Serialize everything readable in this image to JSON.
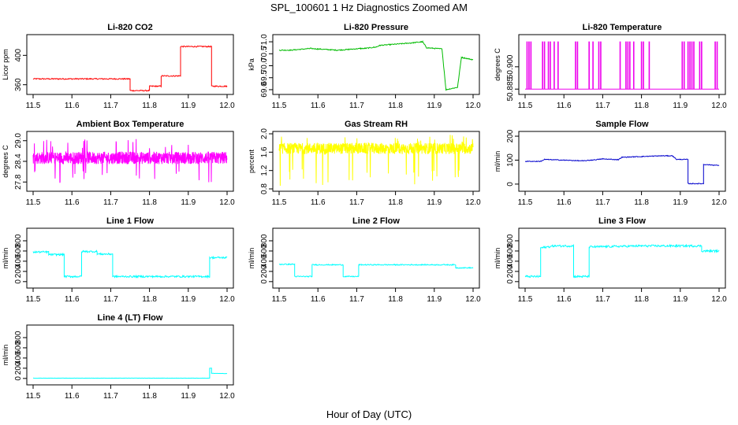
{
  "figure": {
    "title": "SPL_100601  1 Hz Diagnostics Zoomed AM",
    "xlabel": "Hour of Day (UTC)"
  },
  "chart_data": [
    {
      "id": "co2",
      "type": "line",
      "title": "Li-820 CO2",
      "ylabel": "Licor ppm",
      "color": "#ff0000",
      "xlim": [
        11.5,
        12.0
      ],
      "ylim": [
        350,
        425
      ],
      "yticks": [
        360,
        400
      ],
      "ytick_labels": [
        "360",
        "400"
      ],
      "xticks": [
        11.5,
        11.6,
        11.7,
        11.8,
        11.9,
        12.0
      ],
      "xtick_labels": [
        "11.5",
        "11.6",
        "11.7",
        "11.8",
        "11.9",
        "12.0"
      ],
      "x": [
        11.5,
        11.75,
        11.75,
        11.8,
        11.8,
        11.83,
        11.83,
        11.88,
        11.88,
        11.96,
        11.96,
        12.0
      ],
      "y": [
        368,
        368,
        352,
        352,
        358,
        358,
        372,
        372,
        412,
        412,
        358,
        358
      ],
      "noise": 0.8
    },
    {
      "id": "pressure",
      "type": "line",
      "title": "Li-820 Pressure",
      "ylabel": "kPa",
      "color": "#00bb00",
      "xlim": [
        11.5,
        12.0
      ],
      "ylim": [
        68.9,
        71.2
      ],
      "yticks": [
        69.0,
        69.5,
        70.0,
        70.5,
        71.0
      ],
      "ytick_labels": [
        "69.0",
        "69.5",
        "70.0",
        "70.5",
        "71.0"
      ],
      "xticks": [
        11.5,
        11.6,
        11.7,
        11.8,
        11.9,
        12.0
      ],
      "xtick_labels": [
        "11.5",
        "11.6",
        "11.7",
        "11.8",
        "11.9",
        "12.0"
      ],
      "x": [
        11.5,
        11.53,
        11.58,
        11.6,
        11.65,
        11.68,
        11.71,
        11.72,
        11.75,
        11.76,
        11.8,
        11.84,
        11.87,
        11.88,
        11.92,
        11.93,
        11.96,
        11.97,
        12.0
      ],
      "y": [
        70.65,
        70.65,
        70.72,
        70.7,
        70.65,
        70.68,
        70.72,
        70.72,
        70.78,
        70.85,
        70.9,
        70.95,
        71.0,
        70.75,
        70.7,
        69.0,
        69.1,
        70.35,
        70.25
      ],
      "noise": 0.02
    },
    {
      "id": "temp",
      "type": "spikes",
      "title": "Li-820 Temperature",
      "ylabel": "degrees C",
      "color": "#ee00ee",
      "xlim": [
        11.5,
        12.0
      ],
      "ylim": [
        50.883,
        50.92
      ],
      "yticks": [
        50.885,
        50.9
      ],
      "ytick_labels": [
        "50.885",
        "50.900"
      ],
      "xticks": [
        11.5,
        11.6,
        11.7,
        11.8,
        11.9,
        12.0
      ],
      "xtick_labels": [
        "11.5",
        "11.6",
        "11.7",
        "11.8",
        "11.9",
        "12.0"
      ],
      "baseline": 50.885,
      "peak": 50.917,
      "spikes": [
        11.505,
        11.51,
        11.515,
        11.545,
        11.55,
        11.56,
        11.565,
        11.575,
        11.585,
        11.63,
        11.635,
        11.665,
        11.675,
        11.69,
        11.695,
        11.745,
        11.76,
        11.765,
        11.77,
        11.78,
        11.8,
        11.805,
        11.82,
        11.905,
        11.91,
        11.92,
        11.925,
        11.93,
        11.935,
        11.95,
        11.955,
        11.99,
        11.995
      ]
    },
    {
      "id": "box",
      "type": "noise",
      "title": "Ambient Box Temperature",
      "ylabel": "degrees C",
      "color": "#ff00ff",
      "xlim": [
        11.5,
        12.0
      ],
      "ylim": [
        27.6,
        29.2
      ],
      "yticks": [
        27.8,
        28.4,
        29.0
      ],
      "ytick_labels": [
        "27.8",
        "28.4",
        "29.0"
      ],
      "xticks": [
        11.5,
        11.6,
        11.7,
        11.8,
        11.9,
        12.0
      ],
      "xtick_labels": [
        "11.5",
        "11.6",
        "11.7",
        "11.8",
        "11.9",
        "12.0"
      ],
      "center": 28.5,
      "spread": 0.18,
      "outlier_low": 27.75,
      "outlier_high": 29.05
    },
    {
      "id": "rh",
      "type": "noise",
      "title": "Gas Stream RH",
      "ylabel": "percent",
      "color": "#ffff00",
      "xlim": [
        11.5,
        12.0
      ],
      "ylim": [
        0.8,
        2.0
      ],
      "yticks": [
        0.8,
        1.2,
        1.6,
        2.0
      ],
      "ytick_labels": [
        "0.8",
        "1.2",
        "1.6",
        "2.0"
      ],
      "xticks": [
        11.5,
        11.6,
        11.7,
        11.8,
        11.9,
        12.0
      ],
      "xtick_labels": [
        "11.5",
        "11.6",
        "11.7",
        "11.8",
        "11.9",
        "12.0"
      ],
      "center": 1.68,
      "spread": 0.12,
      "outlier_low": 0.85,
      "outlier_high": 1.98
    },
    {
      "id": "sample",
      "type": "line",
      "title": "Sample Flow",
      "ylabel": "ml/min",
      "color": "#0000cc",
      "xlim": [
        11.5,
        12.0
      ],
      "ylim": [
        -20,
        210
      ],
      "yticks": [
        0,
        100,
        200
      ],
      "ytick_labels": [
        "0",
        "100",
        "200"
      ],
      "xticks": [
        11.5,
        11.6,
        11.7,
        11.8,
        11.9,
        12.0
      ],
      "xtick_labels": [
        "11.5",
        "11.6",
        "11.7",
        "11.8",
        "11.9",
        "12.0"
      ],
      "x": [
        11.5,
        11.54,
        11.55,
        11.6,
        11.65,
        11.67,
        11.7,
        11.74,
        11.75,
        11.8,
        11.85,
        11.88,
        11.89,
        11.92,
        11.92,
        11.96,
        11.96,
        12.0
      ],
      "y": [
        95,
        95,
        103,
        100,
        97,
        100,
        105,
        102,
        112,
        115,
        118,
        118,
        103,
        103,
        2,
        2,
        82,
        78
      ],
      "noise": 1.5
    },
    {
      "id": "line1",
      "type": "line",
      "title": "Line 1 Flow",
      "ylabel": "ml/min",
      "color": "#00ffff",
      "xlim": [
        11.5,
        12.0
      ],
      "ylim": [
        -80,
        1000
      ],
      "yticks": [
        0,
        200,
        400,
        600,
        800
      ],
      "ytick_labels": [
        "0",
        "200",
        "400",
        "600",
        "800"
      ],
      "xticks": [
        11.5,
        11.6,
        11.7,
        11.8,
        11.9,
        12.0
      ],
      "xtick_labels": [
        "11.5",
        "11.6",
        "11.7",
        "11.8",
        "11.9",
        "12.0"
      ],
      "x": [
        11.5,
        11.54,
        11.54,
        11.58,
        11.58,
        11.625,
        11.625,
        11.665,
        11.665,
        11.705,
        11.705,
        11.955,
        11.955,
        12.0
      ],
      "y": [
        580,
        580,
        530,
        530,
        100,
        100,
        590,
        590,
        540,
        540,
        100,
        100,
        470,
        470
      ],
      "noise": 18
    },
    {
      "id": "line2",
      "type": "line",
      "title": "Line 2 Flow",
      "ylabel": "ml/min",
      "color": "#00ffff",
      "xlim": [
        11.5,
        12.0
      ],
      "ylim": [
        -80,
        1000
      ],
      "yticks": [
        0,
        200,
        400,
        600,
        800
      ],
      "ytick_labels": [
        "0",
        "200",
        "400",
        "600",
        "800"
      ],
      "xticks": [
        11.5,
        11.6,
        11.7,
        11.8,
        11.9,
        12.0
      ],
      "xtick_labels": [
        "11.5",
        "11.6",
        "11.7",
        "11.8",
        "11.9",
        "12.0"
      ],
      "x": [
        11.5,
        11.54,
        11.54,
        11.585,
        11.585,
        11.665,
        11.665,
        11.705,
        11.705,
        11.955,
        11.955,
        12.0
      ],
      "y": [
        340,
        340,
        100,
        100,
        330,
        330,
        100,
        100,
        330,
        330,
        270,
        270
      ],
      "noise": 10
    },
    {
      "id": "line3",
      "type": "line",
      "title": "Line 3 Flow",
      "ylabel": "ml/min",
      "color": "#00ffff",
      "xlim": [
        11.5,
        12.0
      ],
      "ylim": [
        -80,
        1000
      ],
      "yticks": [
        0,
        200,
        400,
        600,
        800
      ],
      "ytick_labels": [
        "0",
        "200",
        "400",
        "600",
        "800"
      ],
      "xticks": [
        11.5,
        11.6,
        11.7,
        11.8,
        11.9,
        12.0
      ],
      "xtick_labels": [
        "11.5",
        "11.6",
        "11.7",
        "11.8",
        "11.9",
        "12.0"
      ],
      "x": [
        11.5,
        11.54,
        11.54,
        11.575,
        11.625,
        11.625,
        11.665,
        11.665,
        11.8,
        11.955,
        11.955,
        12.0
      ],
      "y": [
        100,
        100,
        660,
        700,
        700,
        100,
        100,
        680,
        700,
        700,
        600,
        600
      ],
      "noise": 20
    },
    {
      "id": "line4",
      "type": "line",
      "title": "Line 4 (LT) Flow",
      "ylabel": "ml/min",
      "color": "#00ffff",
      "xlim": [
        11.5,
        12.0
      ],
      "ylim": [
        -80,
        1000
      ],
      "yticks": [
        0,
        200,
        400,
        600,
        800
      ],
      "ytick_labels": [
        "0",
        "200",
        "400",
        "600",
        "800"
      ],
      "xticks": [
        11.5,
        11.6,
        11.7,
        11.8,
        11.9,
        12.0
      ],
      "xtick_labels": [
        "11.5",
        "11.6",
        "11.7",
        "11.8",
        "11.9",
        "12.0"
      ],
      "x": [
        11.5,
        11.955,
        11.955,
        11.96,
        11.96,
        12.0
      ],
      "y": [
        5,
        5,
        200,
        200,
        100,
        95
      ],
      "noise": 2
    }
  ]
}
